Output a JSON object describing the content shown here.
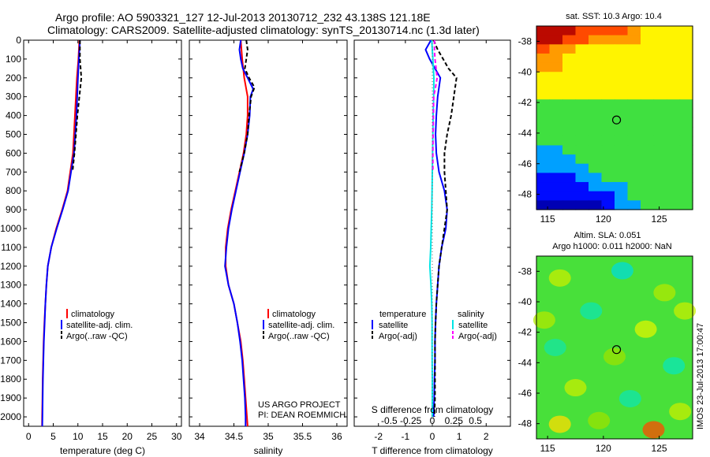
{
  "header": {
    "line1": "Argo profile: AO 5903321_127 12-Jul-2013 20130712_232 43.138S 121.18E",
    "line2": "Climatology: CARS2009. Satellite-adjusted climatology: synTS_20130714.nc (1.3d later)"
  },
  "colors": {
    "climatology": "#ff0000",
    "satellite": "#0000ff",
    "argo": "#000000",
    "satellite_salinity": "#00e5e5",
    "argo_salinity": "#ff00ff"
  },
  "panels": {
    "temperature": {
      "xlabel": "temperature (deg C)",
      "xticks": [
        "0",
        "5",
        "10",
        "15",
        "20",
        "25",
        "30"
      ],
      "legend": [
        "climatology",
        "satellite-adj. clim.",
        "Argo(..raw -QC)"
      ]
    },
    "salinity": {
      "xlabel": "salinity",
      "xticks": [
        "34",
        "34.5",
        "35",
        "35.5",
        "36"
      ],
      "legend": [
        "climatology",
        "satellite-adj. clim.",
        "Argo(..raw -QC)"
      ],
      "credit1": "US ARGO PROJECT",
      "credit2": "PI: DEAN ROEMMICH"
    },
    "difference": {
      "xlabel": "T difference from climatology",
      "top_axis_label": "S difference from climatology",
      "xticks": [
        "-2",
        "-1",
        "0",
        "1",
        "2"
      ],
      "top_ticks": [
        "-0.5",
        "-0.25",
        "0",
        "0.25",
        "0.5"
      ],
      "legend_t_title": "temperature",
      "legend_s_title": "salinity",
      "legend_t": [
        "satellite",
        "Argo(-adj)"
      ],
      "legend_s": [
        "satellite",
        "Argo(-adj)"
      ]
    },
    "depth_ticks": [
      "0",
      "100",
      "200",
      "300",
      "400",
      "500",
      "600",
      "700",
      "800",
      "900",
      "1000",
      "1100",
      "1200",
      "1300",
      "1400",
      "1500",
      "1600",
      "1700",
      "1800",
      "1900",
      "2000"
    ]
  },
  "maps": {
    "sst_title": "sat. SST: 10.3 Argo: 10.4",
    "sla_title1": "Altim. SLA: 0.051",
    "sla_title2": "Argo h1000: 0.011 h2000: NaN",
    "lat_ticks": [
      "-38",
      "-40",
      "-42",
      "-44",
      "-46",
      "-48"
    ],
    "lon_ticks": [
      "115",
      "120",
      "125"
    ],
    "side_label": "IMOS 23-Jul-2013 17:00:47"
  },
  "chart_data": [
    {
      "type": "line",
      "title": "",
      "xlabel": "temperature (deg C)",
      "ylabel": "",
      "xlim": [
        -1,
        31
      ],
      "ylim": [
        2050,
        0
      ],
      "series": [
        {
          "name": "climatology",
          "depth": [
            0,
            100,
            200,
            400,
            600,
            800,
            900,
            1000,
            1100,
            1200,
            1300,
            1400,
            1500,
            1600,
            1700,
            1800,
            1900,
            2000,
            2050
          ],
          "values": [
            10.3,
            10.1,
            9.8,
            9.4,
            9.0,
            7.9,
            6.8,
            5.6,
            4.6,
            3.9,
            3.6,
            3.4,
            3.2,
            3.05,
            2.95,
            2.85,
            2.8,
            2.75,
            2.72
          ]
        },
        {
          "name": "satellite-adj. clim.",
          "depth": [
            0,
            100,
            200,
            400,
            600,
            800,
            900,
            1000,
            1100,
            1200,
            1300,
            1400,
            1500,
            1600,
            1700,
            1800,
            1900,
            2000,
            2050
          ],
          "values": [
            10.4,
            10.2,
            10.0,
            9.7,
            9.2,
            8.0,
            6.9,
            5.7,
            4.6,
            3.9,
            3.6,
            3.4,
            3.25,
            3.1,
            3.0,
            2.9,
            2.85,
            2.8,
            2.78
          ]
        },
        {
          "name": "Argo(..raw -QC)",
          "depth": [
            0,
            100,
            200,
            300,
            400,
            500,
            600,
            700
          ],
          "values": [
            10.4,
            10.4,
            10.7,
            10.3,
            9.9,
            9.6,
            9.3,
            8.9
          ]
        }
      ]
    },
    {
      "type": "line",
      "title": "",
      "xlabel": "salinity",
      "ylabel": "",
      "xlim": [
        33.85,
        36.15
      ],
      "ylim": [
        2050,
        0
      ],
      "series": [
        {
          "name": "climatology",
          "depth": [
            0,
            100,
            200,
            300,
            400,
            500,
            600,
            700,
            800,
            900,
            1000,
            1100,
            1200,
            1300,
            1400,
            1500,
            1600,
            1700,
            1800,
            1900,
            2000,
            2050
          ],
          "values": [
            34.6,
            34.62,
            34.65,
            34.7,
            34.7,
            34.68,
            34.64,
            34.58,
            34.52,
            34.46,
            34.41,
            34.38,
            34.38,
            34.42,
            34.5,
            34.55,
            34.6,
            34.63,
            34.65,
            34.67,
            34.69,
            34.7
          ]
        },
        {
          "name": "satellite-adj. clim.",
          "depth": [
            0,
            50,
            100,
            150,
            200,
            260,
            300,
            400,
            500,
            600,
            700,
            800,
            900,
            1000,
            1100,
            1200,
            1300,
            1400,
            1500,
            1600,
            1700,
            1800,
            1900,
            2000,
            2050
          ],
          "values": [
            34.6,
            34.58,
            34.6,
            34.63,
            34.7,
            34.78,
            34.74,
            34.73,
            34.7,
            34.65,
            34.59,
            34.53,
            34.47,
            34.42,
            34.39,
            34.37,
            34.42,
            34.5,
            34.55,
            34.59,
            34.62,
            34.64,
            34.66,
            34.67,
            34.67
          ]
        },
        {
          "name": "Argo(..raw -QC)",
          "depth": [
            0,
            50,
            100,
            150,
            200,
            250,
            300,
            400,
            500,
            600,
            700
          ],
          "values": [
            34.68,
            34.7,
            34.68,
            34.66,
            34.72,
            34.8,
            34.75,
            34.72,
            34.7,
            34.65,
            34.58
          ]
        }
      ]
    },
    {
      "type": "line",
      "title": "",
      "xlabel": "T difference from climatology",
      "ylabel": "",
      "xlim": [
        -2.9,
        2.9
      ],
      "ylim": [
        2050,
        0
      ],
      "series": [
        {
          "name": "temperature satellite",
          "depth": [
            0,
            50,
            100,
            150,
            200,
            300,
            400,
            500,
            600,
            700,
            800,
            900,
            1000,
            1100,
            1200,
            1300,
            1400,
            1500,
            1600,
            1700,
            1800,
            1900,
            2000
          ],
          "values": [
            -0.05,
            -0.25,
            -0.1,
            0.1,
            0.3,
            0.2,
            0.15,
            0.12,
            0.15,
            0.25,
            0.45,
            0.55,
            0.5,
            0.35,
            0.25,
            0.2,
            0.15,
            0.12,
            0.1,
            0.1,
            0.08,
            0.07,
            0.05
          ]
        },
        {
          "name": "temperature Argo(-adj)",
          "depth": [
            0,
            50,
            100,
            150,
            200,
            300,
            400,
            500,
            600,
            700,
            800,
            900,
            1000,
            1100,
            1200,
            1300,
            1400,
            1500,
            1600,
            1700,
            1800,
            1900,
            2000
          ],
          "values": [
            0.05,
            0.2,
            0.4,
            0.6,
            0.9,
            0.8,
            0.7,
            0.55,
            0.45,
            0.45,
            0.5,
            0.55,
            0.45,
            0.35,
            0.25,
            0.2,
            0.15,
            0.12,
            0.1,
            0.1,
            0.1,
            0.1,
            0.08
          ]
        },
        {
          "name": "salinity satellite",
          "depth": [
            0,
            100,
            200,
            300,
            400,
            500,
            600,
            700,
            800,
            900,
            1000,
            1100,
            1200,
            1300,
            1400,
            1500,
            1600,
            1700,
            1800,
            1900,
            2000
          ],
          "values": [
            -0.02,
            0.02,
            0.06,
            0.05,
            0.03,
            0.02,
            0.01,
            0.0,
            -0.01,
            -0.02,
            -0.04,
            -0.06,
            -0.09,
            -0.05,
            -0.02,
            -0.01,
            -0.01,
            -0.005,
            0.0,
            0.0,
            0.0
          ]
        },
        {
          "name": "salinity Argo(-adj)",
          "depth": [
            0,
            50,
            100,
            150,
            200,
            250,
            300,
            400,
            500,
            600,
            700
          ],
          "values": [
            0.08,
            0.08,
            0.1,
            0.14,
            0.18,
            0.12,
            0.05,
            0.04,
            0.03,
            0.02,
            0.02
          ]
        }
      ]
    },
    {
      "type": "heatmap",
      "title": "sat. SST: 10.3 Argo: 10.4",
      "xlabel": "",
      "ylabel": "",
      "xlim": [
        114,
        128
      ],
      "ylim": [
        -49,
        -37
      ],
      "marker": {
        "lon": 121.18,
        "lat": -43.14
      },
      "rows_north_to_south": [
        "ddd555567777",
        "dd5566667777",
        "566777777777",
        "667777777777",
        "667777777777",
        "777777777777",
        "777777777777",
        "777777777777",
        "888888888888",
        "888888888888",
        "888888888888",
        "888888888888",
        "888888888888",
        "998888888888",
        "999888888888",
        "999988888888",
        "bbb998888888",
        "bbbb99988888",
        "bbbbbb988888",
        "cccccb998888"
      ]
    },
    {
      "type": "heatmap",
      "title": "Altim. SLA: 0.051",
      "xlabel": "",
      "ylabel": "",
      "xlim": [
        114,
        128
      ],
      "ylim": [
        -49,
        -37
      ],
      "marker": {
        "lon": 121.18,
        "lat": -43.14
      }
    }
  ]
}
